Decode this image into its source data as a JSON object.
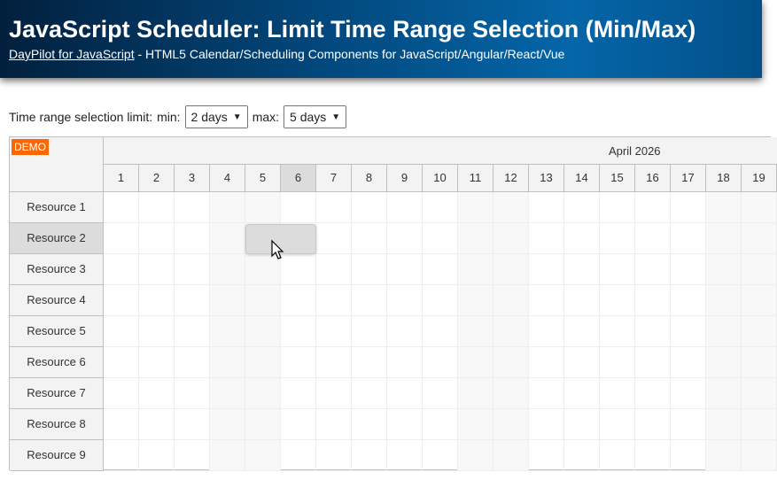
{
  "header": {
    "title": "JavaScript Scheduler: Limit Time Range Selection (Min/Max)",
    "link": "DayPilot for JavaScript",
    "subtitle": " - HTML5 Calendar/Scheduling Components for JavaScript/Angular/React/Vue"
  },
  "controls": {
    "label": "Time range selection limit:",
    "min_label": "min:",
    "min_value": "2 days",
    "max_label": "max:",
    "max_value": "5 days"
  },
  "scheduler": {
    "demo_badge": "DEMO",
    "month": "April 2026",
    "days": [
      "1",
      "2",
      "3",
      "4",
      "5",
      "6",
      "7",
      "8",
      "9",
      "10",
      "11",
      "12",
      "13",
      "14",
      "15",
      "16",
      "17",
      "18",
      "19"
    ],
    "weekend_days": [
      "4",
      "5",
      "11",
      "12",
      "18",
      "19"
    ],
    "highlighted_day": "6",
    "resources": [
      "Resource 1",
      "Resource 2",
      "Resource 3",
      "Resource 4",
      "Resource 5",
      "Resource 6",
      "Resource 7",
      "Resource 8",
      "Resource 9"
    ],
    "highlighted_resource": "Resource 2",
    "selection": {
      "resource": "Resource 2",
      "start_day": "5",
      "end_day": "6"
    }
  },
  "colors": {
    "demo": "#ff6600",
    "header_dark": "#02203d",
    "header_blue": "#0566a8"
  }
}
